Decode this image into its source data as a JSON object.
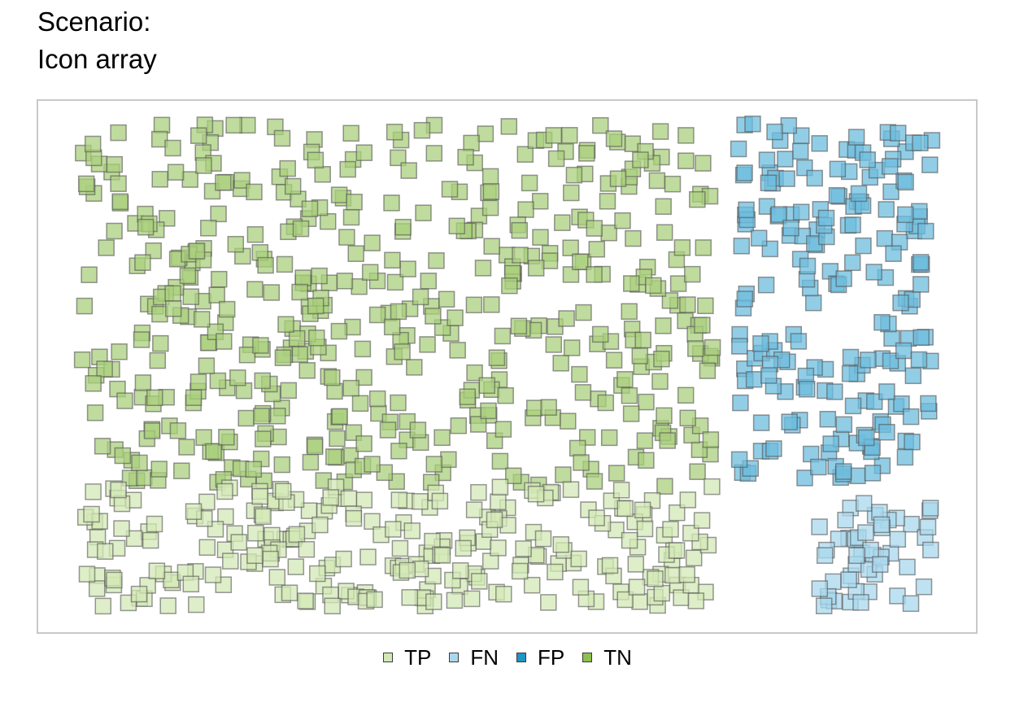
{
  "title_line1": "Scenario:",
  "title_line2": "Icon array",
  "chart_data": {
    "type": "scatter",
    "title": "Scenario: Icon array",
    "grid": false,
    "legend_position": "bottom",
    "categories": [
      "TP",
      "FN",
      "FP",
      "TN"
    ],
    "series": [
      {
        "name": "TP",
        "color": "#d3e8b6",
        "region": "left columns, lower band",
        "count_estimate": 250
      },
      {
        "name": "FN",
        "color": "#a9d8ee",
        "region": "right columns, lower band",
        "count_estimate": 50
      },
      {
        "name": "FP",
        "color": "#6dbcdd",
        "region": "right columns, upper band",
        "count_estimate": 200
      },
      {
        "name": "TN",
        "color": "#a9cf7c",
        "region": "left columns, upper band",
        "count_estimate": 500
      }
    ],
    "total_icons": 1000,
    "icon_shape": "square",
    "icon_opacity": 0.75
  },
  "legend": {
    "items": [
      {
        "label": "TP",
        "color": "#d3e8b6"
      },
      {
        "label": "FN",
        "color": "#a9d8ee"
      },
      {
        "label": "FP",
        "color": "#1f95c4"
      },
      {
        "label": "TN",
        "color": "#8cc04f"
      }
    ]
  }
}
